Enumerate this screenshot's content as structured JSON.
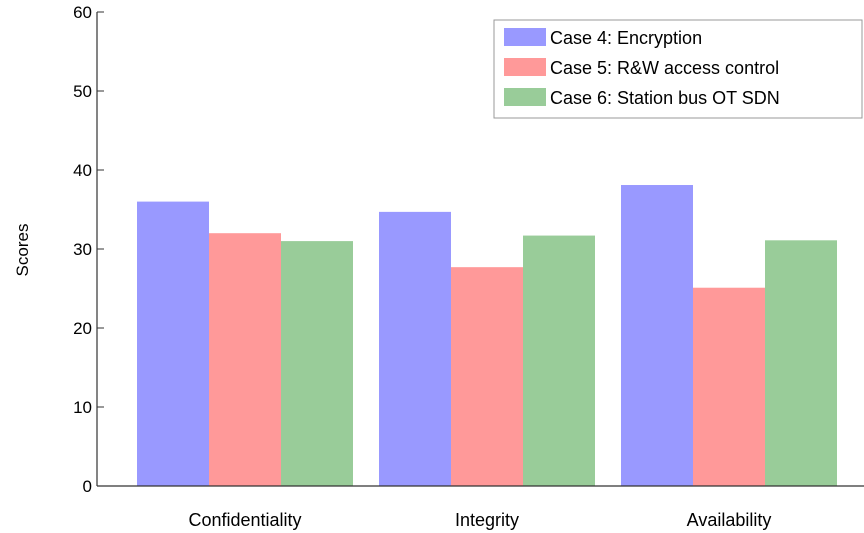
{
  "chart_data": {
    "type": "bar",
    "categories": [
      "Confidentiality",
      "Integrity",
      "Availability"
    ],
    "series": [
      {
        "name": "Case 4: Encryption",
        "values": [
          36,
          34.7,
          38.1
        ],
        "color": "#9999ff"
      },
      {
        "name": "Case 5: R&W access control",
        "values": [
          32,
          27.7,
          25.1
        ],
        "color": "#ff9999"
      },
      {
        "name": "Case 6: Station bus OT SDN",
        "values": [
          31,
          31.7,
          31.1
        ],
        "color": "#99cc99"
      }
    ],
    "title": "",
    "xlabel": "",
    "ylabel": "Scores",
    "ylim": [
      0,
      60
    ],
    "yticks": [
      "0",
      "10",
      "20",
      "30",
      "40",
      "50",
      "60"
    ],
    "grid": false,
    "legend_position": "top-right"
  }
}
